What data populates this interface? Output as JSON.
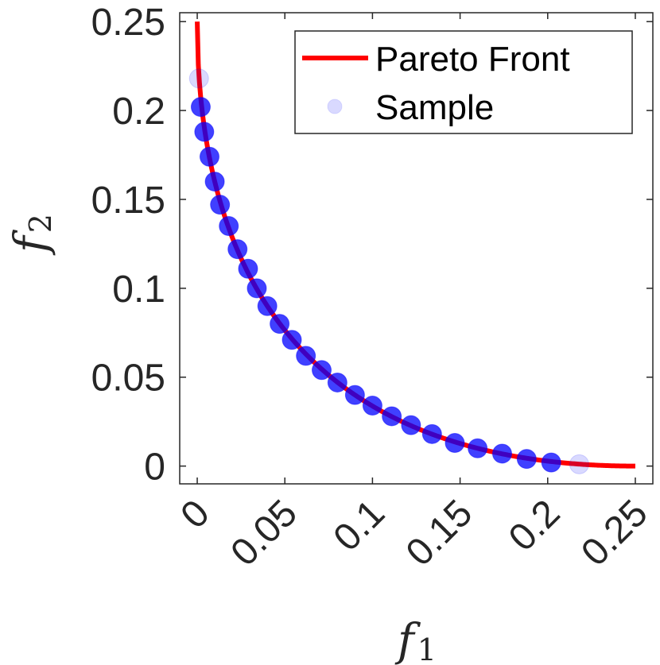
{
  "chart_data": {
    "type": "scatter",
    "xlabel": "f",
    "xlabel_sub": "1",
    "ylabel": "f",
    "ylabel_sub": "2",
    "xlim": [
      -0.01,
      0.26
    ],
    "ylim": [
      -0.01,
      0.255
    ],
    "xticks": [
      "0",
      "0.05",
      "0.1",
      "0.15",
      "0.2",
      "0.25"
    ],
    "yticks": [
      "0",
      "0.05",
      "0.1",
      "0.15",
      "0.2",
      "0.25"
    ],
    "xtick_values": [
      0,
      0.05,
      0.1,
      0.15,
      0.2,
      0.25
    ],
    "ytick_values": [
      0,
      0.05,
      0.1,
      0.15,
      0.2,
      0.25
    ],
    "grid": false,
    "legend_position": "top-right",
    "series": [
      {
        "name": "Pareto Front",
        "kind": "line",
        "color": "#ff0000",
        "x_range": [
          0,
          0.25
        ],
        "relation": "(sqrt(f1) + sqrt(f2))^2 = 0.25"
      },
      {
        "name": "Sample",
        "kind": "scatter",
        "color": "#0000ff",
        "points": [
          {
            "x": 0.001,
            "y": 0.218,
            "faint": true
          },
          {
            "x": 0.002,
            "y": 0.202
          },
          {
            "x": 0.004,
            "y": 0.188
          },
          {
            "x": 0.007,
            "y": 0.174
          },
          {
            "x": 0.01,
            "y": 0.16
          },
          {
            "x": 0.013,
            "y": 0.147
          },
          {
            "x": 0.018,
            "y": 0.135
          },
          {
            "x": 0.023,
            "y": 0.122
          },
          {
            "x": 0.029,
            "y": 0.111
          },
          {
            "x": 0.034,
            "y": 0.1
          },
          {
            "x": 0.04,
            "y": 0.09
          },
          {
            "x": 0.047,
            "y": 0.08
          },
          {
            "x": 0.054,
            "y": 0.071
          },
          {
            "x": 0.062,
            "y": 0.062
          },
          {
            "x": 0.071,
            "y": 0.054
          },
          {
            "x": 0.08,
            "y": 0.047
          },
          {
            "x": 0.09,
            "y": 0.04
          },
          {
            "x": 0.1,
            "y": 0.034
          },
          {
            "x": 0.111,
            "y": 0.028
          },
          {
            "x": 0.122,
            "y": 0.023
          },
          {
            "x": 0.134,
            "y": 0.018
          },
          {
            "x": 0.147,
            "y": 0.013
          },
          {
            "x": 0.16,
            "y": 0.01
          },
          {
            "x": 0.174,
            "y": 0.007
          },
          {
            "x": 0.188,
            "y": 0.004
          },
          {
            "x": 0.202,
            "y": 0.002
          },
          {
            "x": 0.218,
            "y": 0.001,
            "faint": true
          }
        ]
      }
    ]
  }
}
